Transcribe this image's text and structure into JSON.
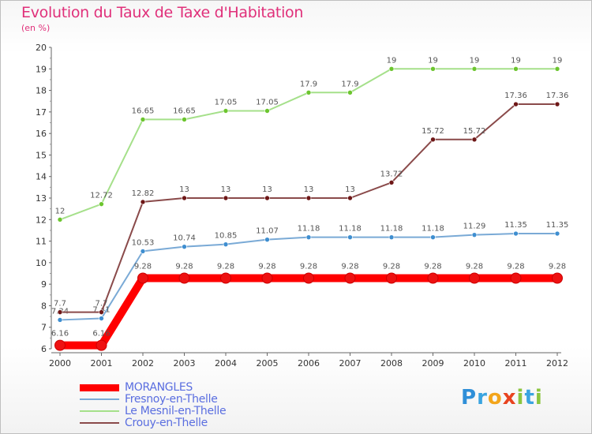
{
  "title": "Evolution du Taux de Taxe d'Habitation",
  "unit": "(en %)",
  "brand": {
    "letters": [
      {
        "ch": "P",
        "color": "#2f8fd8"
      },
      {
        "ch": "r",
        "color": "#3aa4e0"
      },
      {
        "ch": "o",
        "color": "#f3a51b"
      },
      {
        "ch": "x",
        "color": "#e8431f"
      },
      {
        "ch": "i",
        "color": "#8bc53f"
      },
      {
        "ch": "t",
        "color": "#3aa4e0"
      },
      {
        "ch": "i",
        "color": "#8bc53f"
      }
    ]
  },
  "chart_data": {
    "type": "line",
    "title": "Evolution du Taux de Taxe d'Habitation",
    "ylabel": "(en %)",
    "ylim": [
      6,
      20
    ],
    "yticks": [
      6,
      7,
      8,
      9,
      10,
      11,
      12,
      13,
      14,
      15,
      16,
      17,
      18,
      19,
      20
    ],
    "x": [
      "2000",
      "2001",
      "2002",
      "2003",
      "2004",
      "2005",
      "2006",
      "2007",
      "2008",
      "2009",
      "2010",
      "2011",
      "2012"
    ],
    "grid": false,
    "legend": "bottom-left",
    "series": [
      {
        "name": "MORANGLES",
        "color": "#ff0000",
        "dot": "#ee1111",
        "width": 10,
        "emphasis": true,
        "values": [
          6.16,
          6.16,
          9.28,
          9.28,
          9.28,
          9.28,
          9.28,
          9.28,
          9.28,
          9.28,
          9.28,
          9.28,
          9.28
        ],
        "labels": [
          "6.16",
          "6.16",
          "9.28",
          "9.28",
          "9.28",
          "9.28",
          "9.28",
          "9.28",
          "9.28",
          "9.28",
          "9.28",
          "9.28",
          "9.28"
        ]
      },
      {
        "name": "Fresnoy-en-Thelle",
        "color": "#7aaad6",
        "dot": "#3e8ed0",
        "width": 2,
        "values": [
          7.34,
          7.41,
          10.53,
          10.74,
          10.85,
          11.07,
          11.18,
          11.18,
          11.18,
          11.18,
          11.29,
          11.35,
          11.35
        ],
        "labels": [
          "7.34",
          "7.41",
          "10.53",
          "10.74",
          "10.85",
          "11.07",
          "11.18",
          "11.18",
          "11.18",
          "11.18",
          "11.29",
          "11.35",
          "11.35"
        ]
      },
      {
        "name": "Le Mesnil-en-Thelle",
        "color": "#a5e08a",
        "dot": "#6cc52e",
        "width": 2,
        "values": [
          12,
          12.72,
          16.65,
          16.65,
          17.05,
          17.05,
          17.9,
          17.9,
          19,
          19,
          19,
          19,
          19
        ],
        "labels": [
          "12",
          "12.72",
          "16.65",
          "16.65",
          "17.05",
          "17.05",
          "17.9",
          "17.9",
          "19",
          "19",
          "19",
          "19",
          "19"
        ]
      },
      {
        "name": "Crouy-en-Thelle",
        "color": "#8a4a4a",
        "dot": "#6e1717",
        "width": 2,
        "values": [
          7.7,
          7.7,
          12.82,
          13,
          13,
          13,
          13,
          13,
          13.72,
          15.72,
          15.72,
          17.36,
          17.36
        ],
        "labels": [
          "7.7",
          "7.7",
          "12.82",
          "13",
          "13",
          "13",
          "13",
          "13",
          "13.72",
          "15.72",
          "15.72",
          "17.36",
          "17.36"
        ]
      }
    ]
  }
}
